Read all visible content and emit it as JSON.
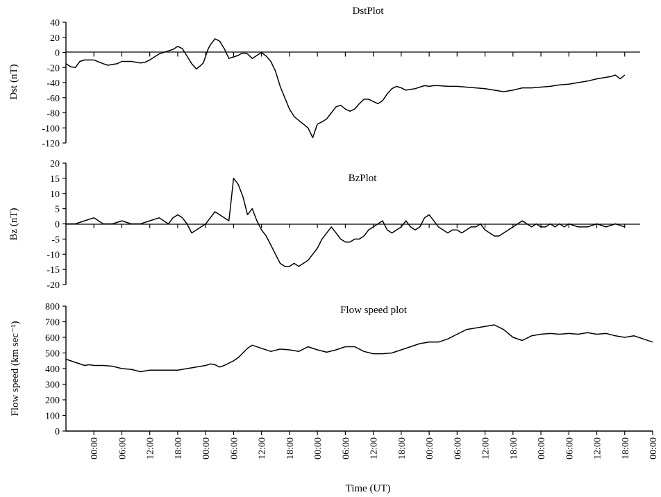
{
  "chart_data": [
    {
      "type": "line",
      "title": "DstPlot",
      "ylabel": "Dst (nT)",
      "xlabel": "",
      "ylim": [
        -120,
        40
      ],
      "yticks": [
        40,
        20,
        0,
        -20,
        -40,
        -60,
        -80,
        -100,
        -120
      ],
      "x_unit": "hours from plot start",
      "xlim": [
        0,
        126
      ],
      "series": [
        {
          "x": [
            0,
            1,
            2,
            3,
            4,
            6,
            8,
            9,
            10,
            11,
            12,
            14,
            16,
            17,
            18,
            19,
            20,
            21,
            22,
            23,
            24,
            25,
            26,
            27,
            28,
            29,
            29.5,
            30,
            30.5,
            31,
            32,
            33,
            34,
            35,
            36,
            36.5,
            37,
            37.5,
            38,
            38.5,
            39,
            40,
            41,
            42,
            43,
            44,
            45,
            46,
            47,
            48,
            48.5,
            49,
            50,
            51,
            52,
            53,
            54,
            55,
            56,
            57,
            58,
            59,
            60,
            61,
            62,
            63,
            64,
            65,
            66,
            67,
            68,
            69,
            70,
            71,
            72,
            73,
            74,
            75,
            76,
            77,
            78,
            79,
            80,
            82,
            84,
            86,
            88,
            90,
            92,
            94,
            96,
            98,
            100,
            102,
            104,
            106,
            108,
            110,
            112,
            114,
            115,
            116,
            117,
            118,
            119,
            120
          ],
          "y": [
            -15,
            -19,
            -20,
            -12,
            -10,
            -10,
            -15,
            -17,
            -16,
            -15,
            -12,
            -12,
            -14,
            -13,
            -10,
            -6,
            -2,
            0,
            2,
            4,
            8,
            5,
            -5,
            -15,
            -22,
            -17,
            -14,
            -5,
            4,
            10,
            18,
            15,
            5,
            -8,
            -6,
            -5,
            -4,
            -2,
            -1,
            -1,
            -2,
            -8,
            -4,
            0,
            -5,
            -12,
            -25,
            -45,
            -60,
            -75,
            -80,
            -85,
            -90,
            -95,
            -100,
            -113,
            -95,
            -92,
            -88,
            -80,
            -72,
            -70,
            -75,
            -78,
            -75,
            -68,
            -62,
            -62,
            -65,
            -68,
            -64,
            -55,
            -48,
            -45,
            -47,
            -50,
            -49,
            -48,
            -46,
            -44,
            -45,
            -44,
            -44,
            -45,
            -45,
            -46,
            -47,
            -48,
            -50,
            -52,
            -50,
            -47,
            -47,
            -46,
            -45,
            -43,
            -42,
            -40,
            -38,
            -35,
            -34,
            -33,
            -32,
            -30,
            -35,
            -30
          ]
        }
      ]
    },
    {
      "type": "line",
      "title": "BzPlot",
      "ylabel": "Bz (nT)",
      "xlabel": "",
      "ylim": [
        -20,
        20
      ],
      "yticks": [
        20,
        15,
        10,
        5,
        0,
        -5,
        -10,
        -15,
        -20
      ],
      "x_unit": "hours from plot start",
      "xlim": [
        0,
        126
      ],
      "series": [
        {
          "x": [
            0,
            2,
            4,
            5,
            6,
            7,
            8,
            10,
            12,
            14,
            16,
            18,
            20,
            21,
            22,
            23,
            24,
            25,
            26,
            27,
            28,
            29,
            30,
            31,
            32,
            33,
            34,
            35,
            36,
            37,
            38,
            39,
            40,
            41,
            42,
            43,
            44,
            45,
            46,
            47,
            48,
            49,
            50,
            51,
            52,
            53,
            54,
            55,
            56,
            57,
            58,
            59,
            60,
            61,
            62,
            63,
            64,
            65,
            66,
            67,
            68,
            69,
            70,
            71,
            72,
            73,
            74,
            75,
            76,
            77,
            78,
            79,
            80,
            81,
            82,
            83,
            84,
            85,
            86,
            87,
            88,
            89,
            90,
            91,
            92,
            93,
            94,
            95,
            96,
            97,
            98,
            99,
            100,
            101,
            102,
            103,
            104,
            105,
            106,
            107,
            108,
            110,
            112,
            114,
            116,
            118,
            120
          ],
          "y": [
            0,
            0,
            1,
            1.5,
            2,
            1,
            0,
            0,
            1,
            0,
            0,
            1,
            2,
            1,
            0,
            2,
            3,
            2,
            0,
            -3,
            -2,
            -1,
            0,
            2,
            4,
            3,
            2,
            1,
            15,
            13,
            9,
            3,
            5,
            1,
            -2,
            -4,
            -7,
            -10,
            -13,
            -14,
            -14,
            -13,
            -14,
            -13,
            -12,
            -10,
            -8,
            -5,
            -3,
            -1,
            -3,
            -5,
            -6,
            -6,
            -5,
            -5,
            -4,
            -2,
            -1,
            0,
            1,
            -2,
            -3,
            -2,
            -1,
            1,
            -1,
            -2,
            -1,
            2,
            3,
            1,
            -1,
            -2,
            -3,
            -2,
            -2,
            -3,
            -2,
            -1,
            -1,
            0,
            -2,
            -3,
            -4,
            -4,
            -3,
            -2,
            -1,
            0,
            1,
            0,
            -1,
            0,
            -1,
            -1,
            0,
            -1,
            0,
            -1,
            0,
            -1,
            -1,
            0,
            -1,
            0,
            -1
          ]
        }
      ]
    },
    {
      "type": "line",
      "title": "Flow speed plot",
      "ylabel": "Flow speed (km sec⁻¹)",
      "xlabel": "Time (UT)",
      "ylim": [
        0,
        800
      ],
      "yticks": [
        800,
        700,
        600,
        500,
        400,
        300,
        200,
        100,
        0
      ],
      "x_unit": "hours from plot start",
      "xlim": [
        0,
        126
      ],
      "series": [
        {
          "x": [
            0,
            2,
            4,
            5,
            6,
            8,
            10,
            12,
            14,
            16,
            17,
            18,
            19,
            20,
            22,
            24,
            26,
            28,
            30,
            31,
            32,
            33,
            34,
            36,
            37,
            38,
            39,
            40,
            42,
            44,
            46,
            48,
            50,
            52,
            54,
            56,
            58,
            60,
            62,
            64,
            66,
            68,
            70,
            72,
            74,
            76,
            78,
            80,
            82,
            84,
            86,
            88,
            90,
            92,
            94,
            96,
            98,
            100,
            102,
            104,
            106,
            108,
            110,
            112,
            114,
            116,
            118,
            120,
            122,
            124,
            126
          ],
          "y": [
            460,
            440,
            420,
            425,
            420,
            420,
            415,
            400,
            395,
            380,
            385,
            390,
            390,
            390,
            390,
            390,
            400,
            410,
            420,
            430,
            425,
            410,
            420,
            450,
            470,
            500,
            530,
            550,
            530,
            510,
            525,
            520,
            510,
            540,
            520,
            505,
            520,
            540,
            540,
            510,
            495,
            495,
            500,
            520,
            540,
            560,
            570,
            570,
            590,
            620,
            650,
            660,
            670,
            680,
            650,
            600,
            580,
            610,
            620,
            625,
            620,
            625,
            620,
            630,
            620,
            625,
            610,
            600,
            610,
            590,
            570
          ]
        }
      ]
    }
  ],
  "x_axis": {
    "tick_labels": [
      "00:00",
      "06:00",
      "12:00",
      "18:00",
      "00:00",
      "06:00",
      "12:00",
      "18:00",
      "00:00",
      "06:00",
      "12:00",
      "18:00",
      "00:00",
      "06:00",
      "12:00",
      "18:00",
      "00:00",
      "06:00",
      "12:00",
      "18:00",
      "00:00"
    ],
    "tick_hours": [
      6,
      12,
      18,
      24,
      30,
      36,
      42,
      48,
      54,
      60,
      66,
      72,
      78,
      84,
      90,
      96,
      102,
      108,
      114,
      120,
      126
    ],
    "label": "Time (UT)"
  }
}
